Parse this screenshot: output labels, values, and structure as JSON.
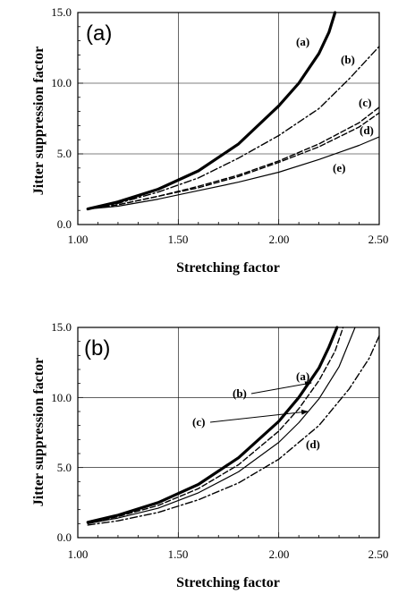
{
  "chart_data": [
    {
      "type": "line",
      "panel_label": "(a)",
      "xlabel": "Stretching factor",
      "ylabel": "Jitter suppression factor",
      "xlim": [
        1.0,
        2.5
      ],
      "ylim": [
        0.0,
        15.0
      ],
      "xticks": [
        "1.00",
        "1.50",
        "2.00",
        "2.50"
      ],
      "yticks": [
        "0.0",
        "5.0",
        "10.0",
        "15.0"
      ],
      "grid": true,
      "series": [
        {
          "name": "(a)",
          "style": "thick",
          "x": [
            1.05,
            1.2,
            1.4,
            1.6,
            1.8,
            2.0,
            2.1,
            2.2,
            2.25,
            2.28
          ],
          "y": [
            1.1,
            1.6,
            2.5,
            3.8,
            5.7,
            8.4,
            10.0,
            12.1,
            13.6,
            15.0
          ]
        },
        {
          "name": "(b)",
          "style": "dashdot",
          "x": [
            1.05,
            1.2,
            1.4,
            1.6,
            1.8,
            2.0,
            2.2,
            2.35,
            2.5
          ],
          "y": [
            1.1,
            1.5,
            2.3,
            3.3,
            4.7,
            6.3,
            8.2,
            10.3,
            12.6
          ]
        },
        {
          "name": "(c)",
          "style": "dashed",
          "x": [
            1.05,
            1.2,
            1.4,
            1.6,
            1.8,
            2.0,
            2.2,
            2.4,
            2.5
          ],
          "y": [
            1.1,
            1.4,
            2.0,
            2.7,
            3.5,
            4.5,
            5.7,
            7.2,
            8.3
          ]
        },
        {
          "name": "(d)",
          "style": "dashed",
          "x": [
            1.05,
            1.2,
            1.4,
            1.6,
            1.8,
            2.0,
            2.2,
            2.4,
            2.5
          ],
          "y": [
            1.1,
            1.4,
            2.0,
            2.6,
            3.4,
            4.4,
            5.5,
            6.9,
            7.9
          ]
        },
        {
          "name": "(e)",
          "style": "solid",
          "x": [
            1.05,
            1.2,
            1.4,
            1.6,
            1.8,
            2.0,
            2.2,
            2.4,
            2.5
          ],
          "y": [
            1.1,
            1.3,
            1.8,
            2.4,
            3.0,
            3.7,
            4.6,
            5.6,
            6.2
          ]
        }
      ]
    },
    {
      "type": "line",
      "panel_label": "(b)",
      "xlabel": "Stretching factor",
      "ylabel": "Jitter suppression factor",
      "xlim": [
        1.0,
        2.5
      ],
      "ylim": [
        0.0,
        15.0
      ],
      "xticks": [
        "1.00",
        "1.50",
        "2.00",
        "2.50"
      ],
      "yticks": [
        "0.0",
        "5.0",
        "10.0",
        "15.0"
      ],
      "grid": true,
      "series": [
        {
          "name": "(a)",
          "style": "thick",
          "x": [
            1.05,
            1.2,
            1.4,
            1.6,
            1.8,
            2.0,
            2.1,
            2.2,
            2.25,
            2.29
          ],
          "y": [
            1.1,
            1.6,
            2.5,
            3.8,
            5.7,
            8.3,
            10.0,
            12.1,
            13.6,
            15.0
          ]
        },
        {
          "name": "(b)",
          "style": "dashed",
          "x": [
            1.05,
            1.2,
            1.4,
            1.6,
            1.8,
            2.0,
            2.1,
            2.2,
            2.28,
            2.32
          ],
          "y": [
            1.0,
            1.5,
            2.3,
            3.5,
            5.2,
            7.6,
            9.2,
            11.2,
            13.3,
            15.0
          ]
        },
        {
          "name": "(c)",
          "style": "solid",
          "x": [
            1.05,
            1.2,
            1.4,
            1.6,
            1.8,
            2.0,
            2.1,
            2.2,
            2.3,
            2.38
          ],
          "y": [
            1.0,
            1.4,
            2.1,
            3.2,
            4.7,
            6.8,
            8.2,
            9.9,
            12.2,
            15.0
          ]
        },
        {
          "name": "(d)",
          "style": "dashdot",
          "x": [
            1.05,
            1.2,
            1.4,
            1.6,
            1.8,
            2.0,
            2.2,
            2.35,
            2.45,
            2.5
          ],
          "y": [
            0.9,
            1.2,
            1.8,
            2.7,
            3.9,
            5.6,
            8.0,
            10.6,
            12.8,
            14.4
          ]
        }
      ],
      "annotations": [
        "(a)",
        "(b)",
        "(c)",
        "(d)"
      ]
    }
  ]
}
